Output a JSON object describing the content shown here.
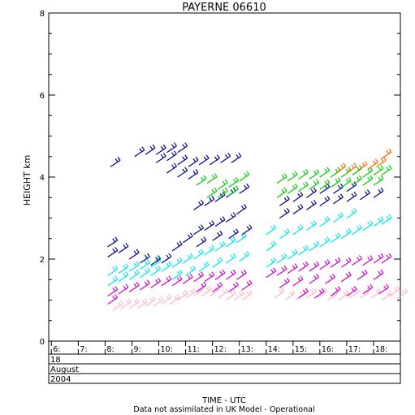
{
  "chart_data": {
    "type": "scatter",
    "title": "PAYERNE 06610",
    "ylabel": "HEIGHT km",
    "xlabel": "TIME - UTC",
    "footnote": "Data not assimilated in UK Model - Operational",
    "ylim": [
      0,
      8
    ],
    "yticks": [
      "0",
      "2",
      "4",
      "6",
      "8"
    ],
    "xlim": [
      5.9,
      19.0
    ],
    "xticks": [
      "6:",
      "7:",
      "8:",
      "9:",
      "10:",
      "11:",
      "12:",
      "13:",
      "14:",
      "15:",
      "16:",
      "17:",
      "18:"
    ],
    "date_rows": [
      "18",
      "August",
      "2004"
    ],
    "grid": false,
    "series": [
      {
        "color": "#ffb6c1",
        "points": [
          [
            8.3,
            0.75
          ],
          [
            8.6,
            0.8
          ],
          [
            8.9,
            0.8
          ],
          [
            9.2,
            0.8
          ],
          [
            9.5,
            0.85
          ],
          [
            9.8,
            0.85
          ],
          [
            10.1,
            0.9
          ],
          [
            10.4,
            0.9
          ],
          [
            10.7,
            1.0
          ],
          [
            11.0,
            1.05
          ],
          [
            11.3,
            1.1
          ],
          [
            11.6,
            1.1
          ],
          [
            11.9,
            1.1
          ],
          [
            12.2,
            1.05
          ],
          [
            12.5,
            1.0
          ],
          [
            12.8,
            1.0
          ],
          [
            13.1,
            1.0
          ],
          [
            14.3,
            1.05
          ],
          [
            14.7,
            1.0
          ],
          [
            15.1,
            1.0
          ],
          [
            15.5,
            1.05
          ],
          [
            15.9,
            1.05
          ],
          [
            16.3,
            1.0
          ],
          [
            16.7,
            1.0
          ],
          [
            17.1,
            1.05
          ],
          [
            17.5,
            1.05
          ],
          [
            17.9,
            1.05
          ],
          [
            18.3,
            1.0
          ],
          [
            18.6,
            1.1
          ],
          [
            18.9,
            1.05
          ]
        ]
      },
      {
        "color": "#cc00cc",
        "points": [
          [
            8.1,
            0.9
          ],
          [
            8.1,
            1.1
          ],
          [
            8.5,
            1.15
          ],
          [
            8.9,
            1.2
          ],
          [
            9.3,
            1.25
          ],
          [
            9.7,
            1.3
          ],
          [
            10.1,
            1.35
          ],
          [
            10.5,
            1.35
          ],
          [
            10.9,
            1.4
          ],
          [
            11.3,
            1.45
          ],
          [
            11.7,
            1.45
          ],
          [
            12.1,
            1.5
          ],
          [
            12.5,
            1.5
          ],
          [
            12.9,
            1.5
          ],
          [
            11.4,
            1.2
          ],
          [
            12.0,
            1.2
          ],
          [
            12.6,
            1.2
          ],
          [
            13.1,
            1.25
          ],
          [
            14.0,
            1.55
          ],
          [
            14.4,
            1.6
          ],
          [
            14.8,
            1.65
          ],
          [
            15.2,
            1.7
          ],
          [
            15.6,
            1.7
          ],
          [
            16.0,
            1.75
          ],
          [
            16.4,
            1.8
          ],
          [
            16.8,
            1.8
          ],
          [
            17.2,
            1.85
          ],
          [
            17.6,
            1.85
          ],
          [
            18.0,
            1.9
          ],
          [
            18.3,
            1.9
          ],
          [
            14.5,
            1.3
          ],
          [
            15.0,
            1.35
          ],
          [
            15.6,
            1.4
          ],
          [
            16.2,
            1.4
          ],
          [
            16.8,
            1.45
          ],
          [
            17.4,
            1.5
          ],
          [
            18.0,
            1.5
          ],
          [
            15.2,
            1.05
          ],
          [
            15.8,
            1.05
          ],
          [
            16.4,
            1.1
          ],
          [
            17.0,
            1.1
          ],
          [
            17.6,
            1.15
          ],
          [
            18.2,
            1.15
          ]
        ]
      },
      {
        "color": "#00e5ee",
        "points": [
          [
            8.1,
            1.35
          ],
          [
            8.5,
            1.45
          ],
          [
            8.9,
            1.5
          ],
          [
            9.3,
            1.55
          ],
          [
            9.7,
            1.6
          ],
          [
            10.1,
            1.7
          ],
          [
            10.5,
            1.8
          ],
          [
            10.9,
            1.9
          ],
          [
            11.3,
            2.0
          ],
          [
            11.7,
            2.1
          ],
          [
            12.1,
            2.2
          ],
          [
            12.5,
            2.3
          ],
          [
            12.9,
            2.4
          ],
          [
            8.1,
            1.6
          ],
          [
            8.5,
            1.65
          ],
          [
            8.9,
            1.7
          ],
          [
            9.3,
            1.75
          ],
          [
            9.7,
            1.8
          ],
          [
            10.5,
            1.5
          ],
          [
            11.0,
            1.6
          ],
          [
            11.5,
            1.7
          ],
          [
            12.0,
            1.8
          ],
          [
            12.5,
            1.9
          ],
          [
            13.0,
            1.95
          ],
          [
            14.0,
            1.8
          ],
          [
            14.4,
            1.9
          ],
          [
            14.8,
            2.0
          ],
          [
            15.2,
            2.1
          ],
          [
            15.6,
            2.2
          ],
          [
            16.0,
            2.3
          ],
          [
            16.4,
            2.4
          ],
          [
            16.8,
            2.5
          ],
          [
            17.2,
            2.6
          ],
          [
            17.6,
            2.7
          ],
          [
            18.0,
            2.8
          ],
          [
            18.3,
            2.85
          ],
          [
            14.0,
            2.2
          ],
          [
            14.0,
            2.6
          ],
          [
            14.5,
            2.5
          ],
          [
            15.0,
            2.6
          ],
          [
            15.5,
            2.7
          ],
          [
            16.0,
            2.8
          ],
          [
            16.5,
            2.9
          ],
          [
            17.0,
            3.0
          ]
        ]
      },
      {
        "color": "#00008b",
        "points": [
          [
            8.1,
            2.3
          ],
          [
            8.1,
            2.05
          ],
          [
            8.5,
            2.15
          ],
          [
            8.9,
            2.0
          ],
          [
            9.3,
            1.9
          ],
          [
            9.7,
            1.85
          ],
          [
            10.1,
            1.9
          ],
          [
            10.5,
            2.2
          ],
          [
            10.9,
            2.4
          ],
          [
            11.3,
            2.6
          ],
          [
            11.7,
            2.7
          ],
          [
            12.1,
            2.8
          ],
          [
            12.5,
            2.9
          ],
          [
            12.9,
            3.1
          ],
          [
            11.4,
            2.3
          ],
          [
            12.0,
            2.45
          ],
          [
            12.6,
            2.5
          ],
          [
            13.1,
            2.6
          ],
          [
            11.3,
            3.2
          ],
          [
            11.7,
            3.3
          ],
          [
            12.1,
            3.4
          ],
          [
            12.5,
            3.5
          ],
          [
            13.0,
            3.6
          ],
          [
            8.2,
            4.25
          ],
          [
            9.1,
            4.5
          ],
          [
            9.5,
            4.55
          ],
          [
            9.9,
            4.55
          ],
          [
            10.3,
            4.6
          ],
          [
            10.7,
            4.6
          ],
          [
            9.9,
            4.35
          ],
          [
            10.3,
            4.4
          ],
          [
            10.7,
            4.3
          ],
          [
            11.1,
            4.25
          ],
          [
            11.5,
            4.3
          ],
          [
            11.9,
            4.3
          ],
          [
            12.3,
            4.35
          ],
          [
            12.7,
            4.35
          ],
          [
            10.3,
            4.1
          ],
          [
            10.7,
            4.0
          ],
          [
            11.1,
            3.95
          ],
          [
            14.5,
            3.0
          ],
          [
            15.0,
            3.1
          ],
          [
            15.5,
            3.2
          ],
          [
            16.0,
            3.3
          ],
          [
            16.5,
            3.35
          ],
          [
            17.0,
            3.4
          ],
          [
            17.5,
            3.45
          ],
          [
            18.0,
            3.5
          ],
          [
            14.5,
            3.3
          ],
          [
            15.0,
            3.4
          ],
          [
            15.5,
            3.5
          ],
          [
            16.0,
            3.6
          ],
          [
            16.5,
            3.6
          ],
          [
            17.0,
            3.65
          ]
        ]
      },
      {
        "color": "#00cc00",
        "points": [
          [
            11.4,
            3.8
          ],
          [
            11.8,
            3.85
          ],
          [
            12.2,
            3.7
          ],
          [
            12.6,
            3.75
          ],
          [
            13.0,
            3.9
          ],
          [
            14.4,
            3.85
          ],
          [
            14.8,
            3.9
          ],
          [
            15.2,
            3.95
          ],
          [
            15.6,
            3.95
          ],
          [
            16.0,
            4.0
          ],
          [
            16.4,
            4.0
          ],
          [
            16.8,
            4.0
          ],
          [
            17.2,
            4.05
          ],
          [
            17.6,
            4.0
          ],
          [
            18.0,
            4.05
          ],
          [
            18.3,
            4.05
          ],
          [
            11.8,
            3.5
          ],
          [
            12.2,
            3.5
          ],
          [
            12.6,
            3.55
          ],
          [
            14.4,
            3.5
          ],
          [
            14.8,
            3.6
          ],
          [
            15.2,
            3.65
          ],
          [
            15.6,
            3.7
          ],
          [
            16.0,
            3.7
          ],
          [
            16.4,
            3.75
          ],
          [
            16.8,
            3.75
          ],
          [
            17.2,
            3.8
          ],
          [
            17.6,
            3.8
          ],
          [
            18.0,
            3.8
          ]
        ]
      },
      {
        "color": "#ff6600",
        "points": [
          [
            16.6,
            4.1
          ],
          [
            17.0,
            4.1
          ],
          [
            17.4,
            4.15
          ],
          [
            17.8,
            4.2
          ],
          [
            18.1,
            4.25
          ],
          [
            18.3,
            4.45
          ]
        ]
      }
    ]
  }
}
